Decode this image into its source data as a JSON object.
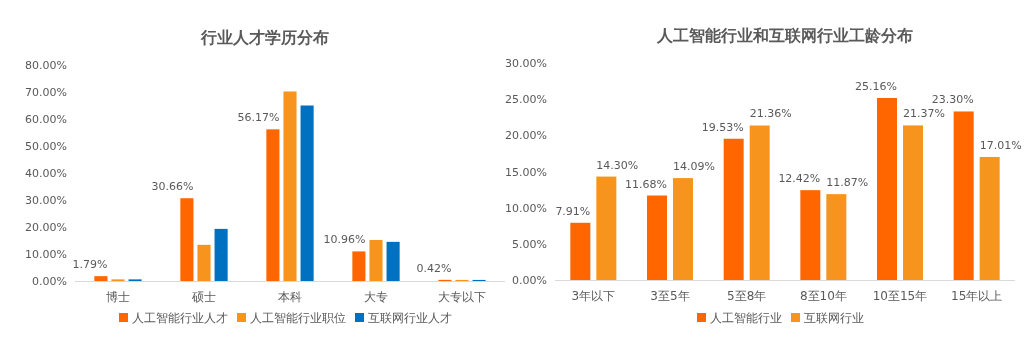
{
  "chart_data": [
    {
      "type": "bar",
      "title": "行业人才学历分布",
      "categories": [
        "博士",
        "硕士",
        "本科",
        "大专",
        "大专以下"
      ],
      "series": [
        {
          "name": "人工智能行业人才",
          "color": "#ff6600",
          "values": [
            1.79,
            30.66,
            56.17,
            10.96,
            0.42
          ],
          "value_labels": [
            "1.79%",
            "30.66%",
            "56.17%",
            "10.96%",
            "0.42%"
          ]
        },
        {
          "name": "人工智能行业职位",
          "color": "#f7941d",
          "values": [
            0.6,
            13.4,
            70.2,
            15.2,
            0.4
          ]
        },
        {
          "name": "互联网行业人才",
          "color": "#0070c0",
          "values": [
            0.6,
            19.3,
            65.0,
            14.5,
            0.4
          ]
        }
      ],
      "ylim": [
        0,
        80
      ],
      "yticks": [
        {
          "value": 0,
          "label": "0.00%"
        },
        {
          "value": 10,
          "label": "10.00%"
        },
        {
          "value": 20,
          "label": "20.00%"
        },
        {
          "value": 30,
          "label": "30.00%"
        },
        {
          "value": 40,
          "label": "40.00%"
        },
        {
          "value": 50,
          "label": "50.00%"
        },
        {
          "value": 60,
          "label": "60.00%"
        },
        {
          "value": 70,
          "label": "70.00%"
        },
        {
          "value": 80,
          "label": "80.00%"
        }
      ],
      "legend": "bottom"
    },
    {
      "type": "bar",
      "title": "人工智能行业和互联网行业工龄分布",
      "categories": [
        "3年以下",
        "3至5年",
        "5至8年",
        "8至10年",
        "10至15年",
        "15年以上"
      ],
      "series": [
        {
          "name": "人工智能行业",
          "color": "#ff6600",
          "values": [
            7.91,
            11.68,
            19.53,
            12.42,
            25.16,
            23.3
          ],
          "value_labels": [
            "7.91%",
            "11.68%",
            "19.53%",
            "12.42%",
            "25.16%",
            "23.30%"
          ]
        },
        {
          "name": "互联网行业",
          "color": "#f7941d",
          "values": [
            14.3,
            14.09,
            21.36,
            11.87,
            21.37,
            17.01
          ],
          "value_labels": [
            "14.30%",
            "14.09%",
            "21.36%",
            "11.87%",
            "21.37%",
            "17.01%"
          ]
        }
      ],
      "ylim": [
        0,
        30
      ],
      "yticks": [
        {
          "value": 0,
          "label": "0.00%"
        },
        {
          "value": 5,
          "label": "5.00%"
        },
        {
          "value": 10,
          "label": "10.00%"
        },
        {
          "value": 15,
          "label": "15.00%"
        },
        {
          "value": 20,
          "label": "20.00%"
        },
        {
          "value": 25,
          "label": "25.00%"
        },
        {
          "value": 30,
          "label": "30.00%"
        }
      ],
      "legend": "bottom"
    }
  ]
}
